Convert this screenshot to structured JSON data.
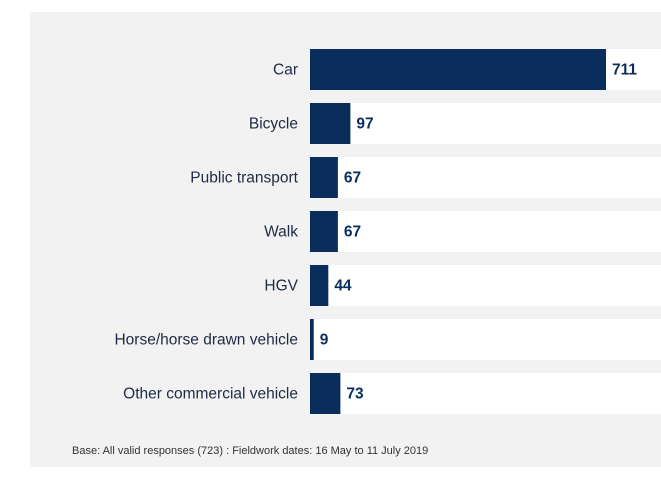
{
  "chart_data": {
    "type": "bar",
    "orientation": "horizontal",
    "categories": [
      "Car",
      "Bicycle",
      "Public transport",
      "Walk",
      "HGV",
      "Horse/horse drawn vehicle",
      "Other commercial vehicle"
    ],
    "values": [
      711,
      97,
      67,
      67,
      44,
      9,
      73
    ],
    "color": "#0b2d5b",
    "xlim": [
      0,
      843
    ],
    "footnote": "Base: All valid responses (723) : Fieldwork dates: 16 May to 11 July 2019"
  }
}
